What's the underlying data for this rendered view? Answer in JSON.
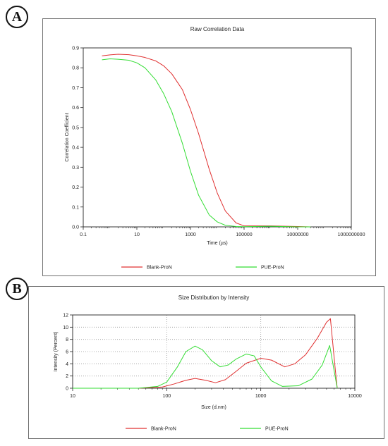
{
  "panels": [
    {
      "label": "A"
    },
    {
      "label": "B"
    }
  ],
  "colors": {
    "blank": "#e03030",
    "pue": "#33dd33",
    "frame": "#6f6f6f"
  },
  "chart_data": [
    {
      "type": "line",
      "title": "Raw Correlation Data",
      "xlabel": "Time (µs)",
      "ylabel": "Correlation Coefficient",
      "xscale": "log",
      "xlim": [
        0.1,
        1000000000
      ],
      "ylim": [
        0,
        0.9
      ],
      "x_ticks": [
        "0.1",
        "10",
        "1000",
        "100000",
        "10000000",
        "1000000000"
      ],
      "y_ticks": [
        "0.0",
        "0.1",
        "0.2",
        "0.3",
        "0.4",
        "0.5",
        "0.6",
        "0.7",
        "0.8",
        "0.9"
      ],
      "grid": false,
      "legend": "bottom",
      "series": [
        {
          "name": "Blank-ProN",
          "color": "#e03030",
          "x": [
            0.5,
            1,
            2,
            5,
            10,
            20,
            50,
            100,
            200,
            500,
            1000,
            2000,
            5000,
            10000,
            20000,
            50000,
            100000,
            1000000,
            10000000,
            30000000
          ],
          "y": [
            0.86,
            0.865,
            0.868,
            0.866,
            0.86,
            0.852,
            0.835,
            0.81,
            0.77,
            0.69,
            0.59,
            0.47,
            0.29,
            0.17,
            0.08,
            0.02,
            0.005,
            0.005,
            0.002,
            0.0
          ]
        },
        {
          "name": "PUE-ProN",
          "color": "#33dd33",
          "x": [
            0.5,
            1,
            2,
            5,
            10,
            20,
            50,
            100,
            200,
            500,
            1000,
            2000,
            5000,
            10000,
            20000,
            50000,
            100000,
            1000000,
            10000000,
            30000000
          ],
          "y": [
            0.84,
            0.845,
            0.843,
            0.838,
            0.825,
            0.8,
            0.74,
            0.67,
            0.58,
            0.42,
            0.28,
            0.16,
            0.06,
            0.025,
            0.008,
            0.002,
            0.001,
            0.003,
            0.0,
            0.0
          ]
        }
      ]
    },
    {
      "type": "line",
      "title": "Size Distribution by Intensity",
      "xlabel": "Size (d.nm)",
      "ylabel": "Intensity (Percent)",
      "xscale": "log",
      "xlim": [
        10,
        10000
      ],
      "ylim": [
        0,
        12
      ],
      "x_ticks": [
        "10",
        "100",
        "1000",
        "10000"
      ],
      "y_ticks": [
        "0",
        "2",
        "4",
        "6",
        "8",
        "10",
        "12"
      ],
      "grid": true,
      "legend": "bottom",
      "series": [
        {
          "name": "Blank-ProN",
          "color": "#e03030",
          "x": [
            10,
            50,
            90,
            120,
            160,
            200,
            260,
            330,
            420,
            550,
            700,
            1000,
            1300,
            1800,
            2300,
            3000,
            4000,
            5000,
            5500,
            6200,
            6500
          ],
          "y": [
            0,
            0,
            0.2,
            0.7,
            1.3,
            1.6,
            1.3,
            0.9,
            1.4,
            2.8,
            4.1,
            4.9,
            4.6,
            3.5,
            4.0,
            5.5,
            8.2,
            10.8,
            11.4,
            3.0,
            0
          ]
        },
        {
          "name": "PUE-ProN",
          "color": "#33dd33",
          "x": [
            10,
            50,
            80,
            100,
            130,
            160,
            200,
            240,
            300,
            370,
            450,
            550,
            700,
            850,
            1000,
            1300,
            1700,
            2500,
            3500,
            4500,
            5400,
            6000,
            6500
          ],
          "y": [
            0,
            0,
            0.3,
            1.0,
            3.5,
            6.0,
            6.9,
            6.3,
            4.5,
            3.5,
            3.8,
            4.8,
            5.6,
            5.3,
            3.5,
            1.2,
            0.3,
            0.4,
            1.5,
            3.8,
            7.0,
            3.0,
            0
          ]
        }
      ]
    }
  ]
}
